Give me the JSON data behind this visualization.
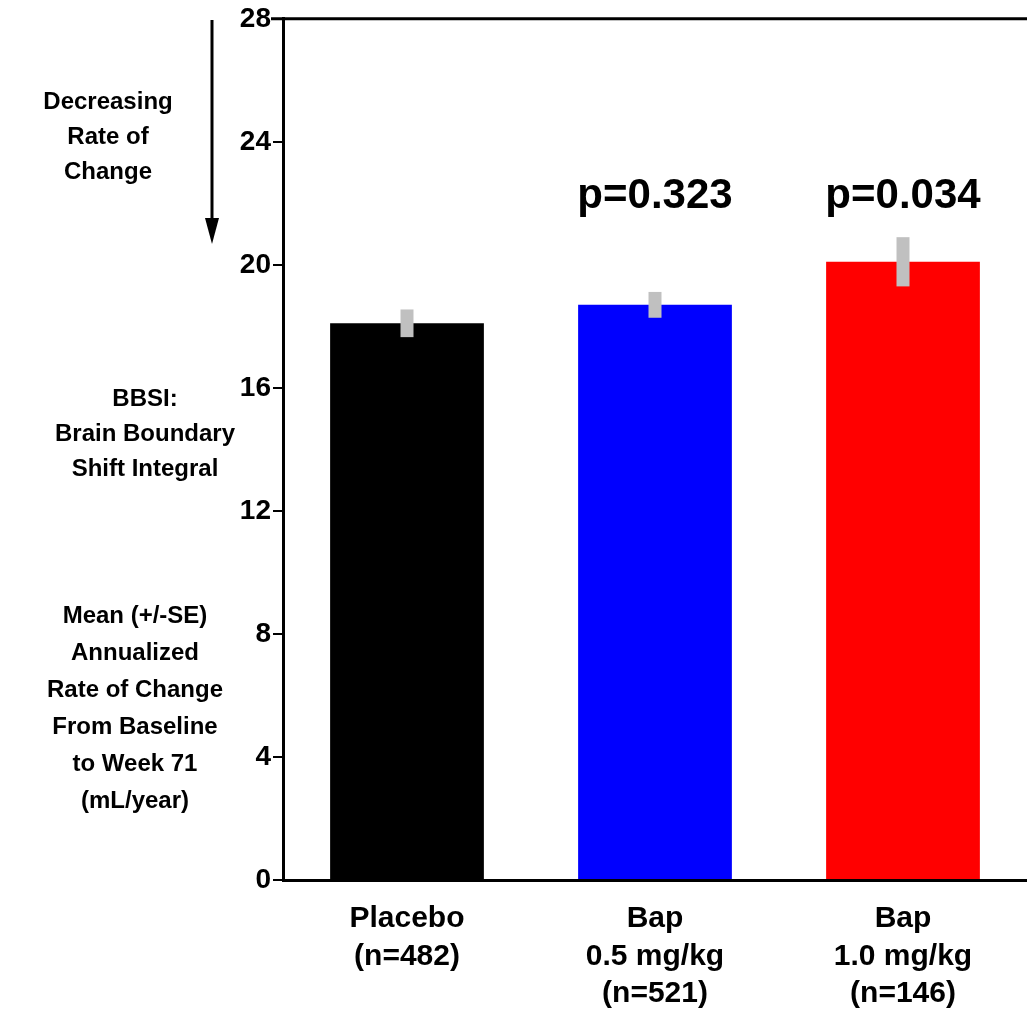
{
  "chart_data": {
    "type": "bar",
    "categories": [
      "Placebo\n(n=482)",
      "Bap\n0.5 mg/kg\n(n=521)",
      "Bap\n1.0 mg/kg\n(n=146)"
    ],
    "values": [
      18.1,
      18.7,
      20.1
    ],
    "colors": [
      "#000000",
      "#0000ff",
      "#ff0000"
    ],
    "errors": [
      0.45,
      0.42,
      0.8
    ],
    "ylim": [
      0,
      28
    ],
    "yticks": [
      0,
      4,
      8,
      12,
      16,
      20,
      24,
      28
    ],
    "ylabel": "Mean (+/-SE)\nAnnualized\nRate of Change\nFrom Baseline\nto Week 71\n(mL/year)",
    "annotations": [
      "Decreasing\nRate of\nChange",
      "BBSI:\nBrain Boundary\nShift Integral",
      "p=0.323",
      "p=0.034"
    ]
  }
}
